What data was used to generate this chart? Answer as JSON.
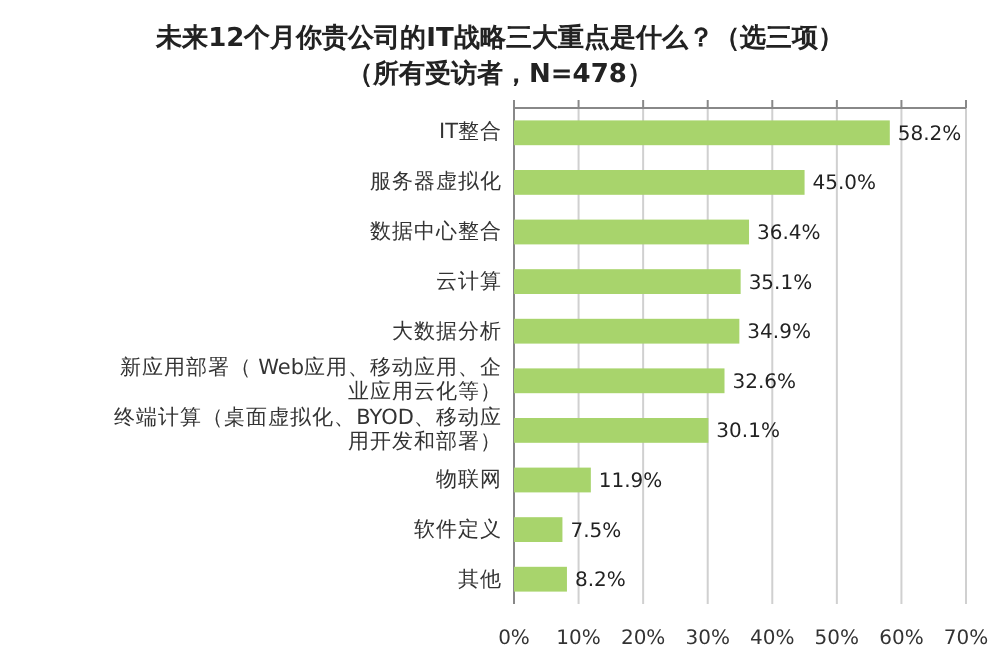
{
  "chart_data": {
    "type": "bar",
    "orientation": "horizontal",
    "title": "未来12个月你贵公司的IT战略三大重点是什么？（选三项）",
    "subtitle": "（所有受访者，N=478）",
    "categories": [
      "IT整合",
      "服务器虚拟化",
      "数据中心整合",
      "云计算",
      "大数据分析",
      "新应用部署（ Web应用、移动应用、企业应用云化等）",
      "终端计算（桌面虚拟化、BYOD、移动应用开发和部署）",
      "物联网",
      "软件定义",
      "其他"
    ],
    "values": [
      58.2,
      45.0,
      36.4,
      35.1,
      34.9,
      32.6,
      30.1,
      11.9,
      7.5,
      8.2
    ],
    "value_labels": [
      "58.2%",
      "45.0%",
      "36.4%",
      "35.1%",
      "34.9%",
      "32.6%",
      "30.1%",
      "11.9%",
      "7.5%",
      "8.2%"
    ],
    "color": "#a8d46c",
    "xlim": [
      0,
      70
    ],
    "xticks": [
      {
        "value": 0,
        "label": "0%"
      },
      {
        "value": 10,
        "label": "10%"
      },
      {
        "value": 20,
        "label": "20%"
      },
      {
        "value": 30,
        "label": "30%"
      },
      {
        "value": 40,
        "label": "40%"
      },
      {
        "value": 50,
        "label": "50%"
      },
      {
        "value": 60,
        "label": "60%"
      },
      {
        "value": 70,
        "label": "70%"
      }
    ],
    "grid": "x"
  }
}
